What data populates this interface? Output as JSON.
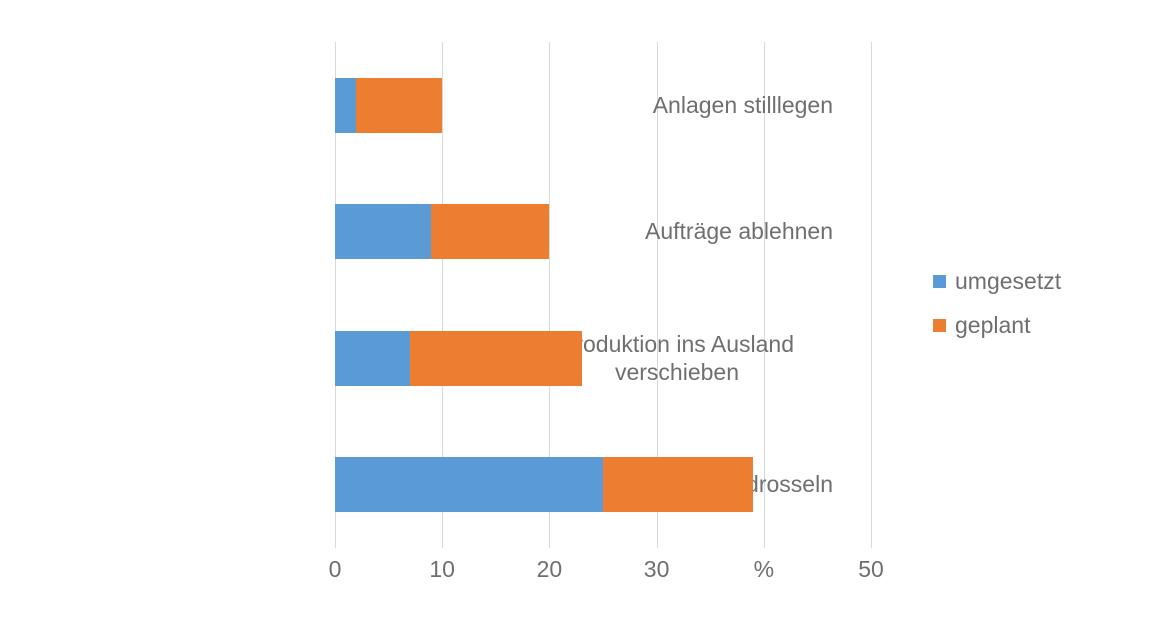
{
  "chart_data": {
    "type": "bar",
    "orientation": "horizontal",
    "stacked": true,
    "title": "",
    "xlabel": "%",
    "ylabel": "",
    "grid": true,
    "axis_max": 55,
    "categories": [
      "Anlagen stilllegen",
      "Aufträge ablehnen",
      "Produktion ins Ausland verschieben",
      "Produktion drosseln"
    ],
    "series": [
      {
        "name": "umgesetzt",
        "color": "#5b9bd5",
        "values": [
          2,
          9,
          7,
          25
        ]
      },
      {
        "name": "geplant",
        "color": "#ed7d31",
        "values": [
          8,
          11,
          16,
          14
        ]
      }
    ],
    "totals": [
      10,
      20,
      23,
      39
    ],
    "x_ticks": [
      {
        "value": 0,
        "label": "0"
      },
      {
        "value": 10,
        "label": "10"
      },
      {
        "value": 20,
        "label": "20"
      },
      {
        "value": 30,
        "label": "30"
      },
      {
        "value": 40,
        "label": "%"
      },
      {
        "value": 50,
        "label": "50"
      }
    ],
    "legend": {
      "position": "right",
      "entries": [
        "umgesetzt",
        "geplant"
      ]
    },
    "colors": {
      "grid": "#d9d9d9",
      "text": "#6f6f6f",
      "background": "#ffffff"
    }
  }
}
